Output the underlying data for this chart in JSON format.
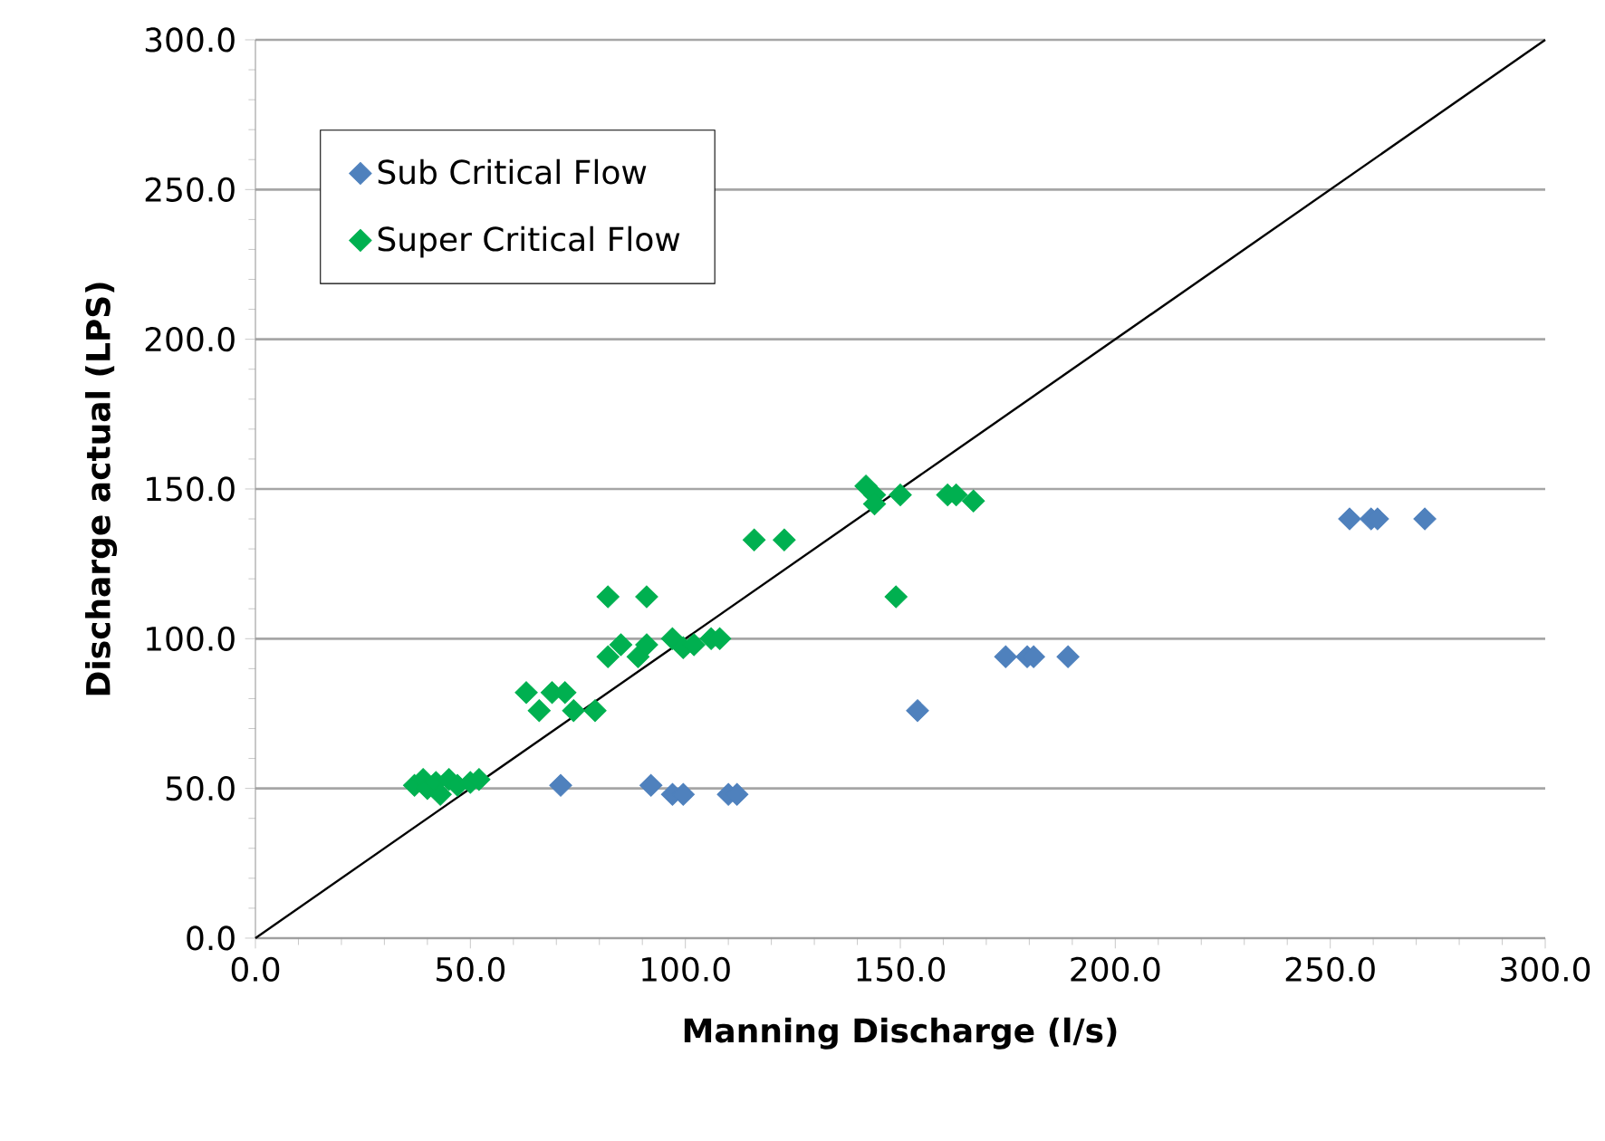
{
  "chart_data": {
    "type": "scatter",
    "xlabel": "Manning Discharge (l/s)",
    "ylabel": "Discharge actual (LPS)",
    "xlim": [
      0,
      300
    ],
    "ylim": [
      0,
      300
    ],
    "xticks": [
      {
        "value": 0,
        "label": "0.0"
      },
      {
        "value": 50,
        "label": "50.0"
      },
      {
        "value": 100,
        "label": "100.0"
      },
      {
        "value": 150,
        "label": "150.0"
      },
      {
        "value": 200,
        "label": "200.0"
      },
      {
        "value": 250,
        "label": "250.0"
      },
      {
        "value": 300,
        "label": "300.0"
      }
    ],
    "yticks": [
      {
        "value": 0,
        "label": "0.0"
      },
      {
        "value": 50,
        "label": "50.0"
      },
      {
        "value": 100,
        "label": "100.0"
      },
      {
        "value": 150,
        "label": "150.0"
      },
      {
        "value": 200,
        "label": "200.0"
      },
      {
        "value": 250,
        "label": "250.0"
      },
      {
        "value": 300,
        "label": "300.0"
      }
    ],
    "grid": "y",
    "legend": "top left",
    "marker": "diamond",
    "series": [
      {
        "name": "Sub Critical Flow",
        "color": "#4f81bd",
        "x": [
          71,
          92,
          97,
          99.5,
          110,
          112,
          154,
          174.5,
          179.5,
          181,
          189,
          254.5,
          259.5,
          261,
          272
        ],
        "values": [
          51,
          51,
          48,
          48,
          48,
          48,
          76,
          94,
          94,
          94,
          94,
          140,
          140,
          140,
          140
        ]
      },
      {
        "name": "Super Critical Flow",
        "color": "#00b050",
        "x": [
          37,
          39,
          40,
          42,
          43,
          45,
          47,
          50,
          52,
          63,
          66,
          69,
          72,
          74,
          79,
          82,
          82,
          85,
          89,
          91,
          91,
          97,
          99.5,
          102,
          106,
          108,
          116,
          123,
          142,
          144,
          144,
          149,
          150,
          161,
          163,
          167
        ],
        "values": [
          51,
          53,
          50,
          52,
          48,
          53,
          51,
          52,
          53,
          82,
          76,
          82,
          82,
          76,
          76,
          114,
          94,
          98,
          94,
          114,
          98,
          100,
          97,
          98,
          100,
          100,
          133,
          133,
          151,
          148,
          145,
          114,
          148,
          148,
          148,
          146
        ]
      },
      {
        "type": "line",
        "marker": "none",
        "color": "#000000",
        "x": [
          0,
          300
        ],
        "values": [
          0,
          300
        ]
      }
    ]
  }
}
